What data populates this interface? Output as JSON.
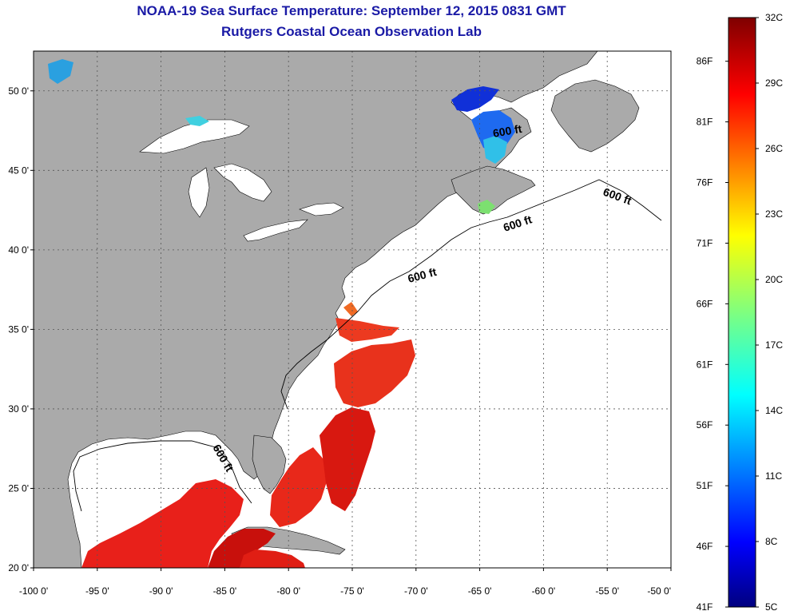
{
  "header": {
    "title_line1": "NOAA-19 Sea Surface Temperature:  September 12, 2015 0831 GMT",
    "title_line2": "Rutgers Coastal Ocean Observation Lab"
  },
  "map": {
    "lon_range": [
      -100,
      -50
    ],
    "lat_range": [
      20,
      52.5
    ],
    "lon_ticks": [
      {
        "value": -100,
        "label": "-100 0'"
      },
      {
        "value": -95,
        "label": "-95 0'"
      },
      {
        "value": -90,
        "label": "-90 0'"
      },
      {
        "value": -85,
        "label": "-85 0'"
      },
      {
        "value": -80,
        "label": "-80 0'"
      },
      {
        "value": -75,
        "label": "-75 0'"
      },
      {
        "value": -70,
        "label": "-70 0'"
      },
      {
        "value": -65,
        "label": "-65 0'"
      },
      {
        "value": -60,
        "label": "-60 0'"
      },
      {
        "value": -55,
        "label": "-55 0'"
      },
      {
        "value": -50,
        "label": "-50 0'"
      }
    ],
    "lat_ticks": [
      {
        "value": 20,
        "label": "20 0'"
      },
      {
        "value": 25,
        "label": "25 0'"
      },
      {
        "value": 30,
        "label": "30 0'"
      },
      {
        "value": 35,
        "label": "35 0'"
      },
      {
        "value": 40,
        "label": "40 0'"
      },
      {
        "value": 45,
        "label": "45 0'"
      },
      {
        "value": 50,
        "label": "50 0'"
      }
    ],
    "contour_labels": [
      "600 ft",
      "600 ft",
      "600 ft",
      "600 ft",
      "600 ft"
    ],
    "colors": {
      "land": "#aaaaaa",
      "ocean": "#ffffff",
      "grid": "#555555"
    }
  },
  "colorbar": {
    "celsius_labels": [
      "32C",
      "29C",
      "26C",
      "23C",
      "20C",
      "17C",
      "14C",
      "11C",
      "8C",
      "5C"
    ],
    "fahrenheit_labels": [
      "86F",
      "81F",
      "76F",
      "71F",
      "66F",
      "61F",
      "56F",
      "51F",
      "46F",
      "41F"
    ],
    "celsius_range": [
      5,
      32
    ]
  }
}
